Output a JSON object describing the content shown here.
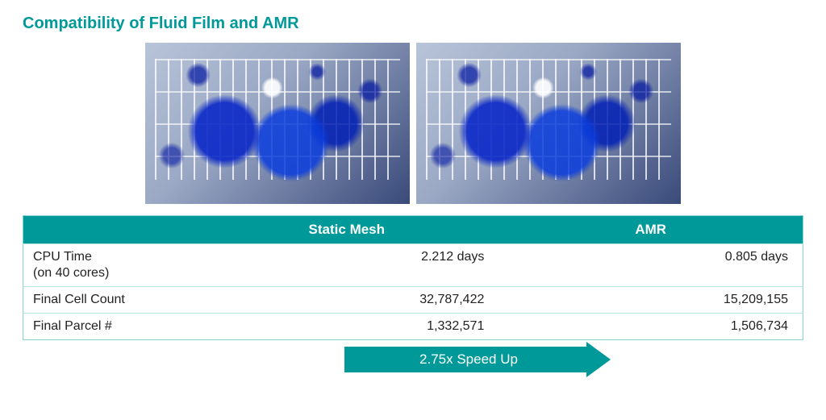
{
  "title": "Compatibility of Fluid Film and AMR",
  "accent_color": "#009999",
  "border_color": "#b8e2e2",
  "text_color": "#222222",
  "background_color": "#ffffff",
  "images": {
    "left_alt": "Static Mesh fluid simulation render",
    "right_alt": "AMR fluid simulation render"
  },
  "table": {
    "columns": [
      "",
      "Static Mesh",
      "AMR"
    ],
    "rows": [
      {
        "label": "CPU Time\n(on 40 cores)",
        "static": "2.212 days",
        "amr": "0.805 days"
      },
      {
        "label": "Final Cell Count",
        "static": "32,787,422",
        "amr": "15,209,155"
      },
      {
        "label": "Final Parcel #",
        "static": "1,332,571",
        "amr": "1,506,734"
      }
    ]
  },
  "speedup": {
    "label": "2.75x Speed Up",
    "arrow_color": "#009999",
    "text_color": "#ffffff"
  }
}
